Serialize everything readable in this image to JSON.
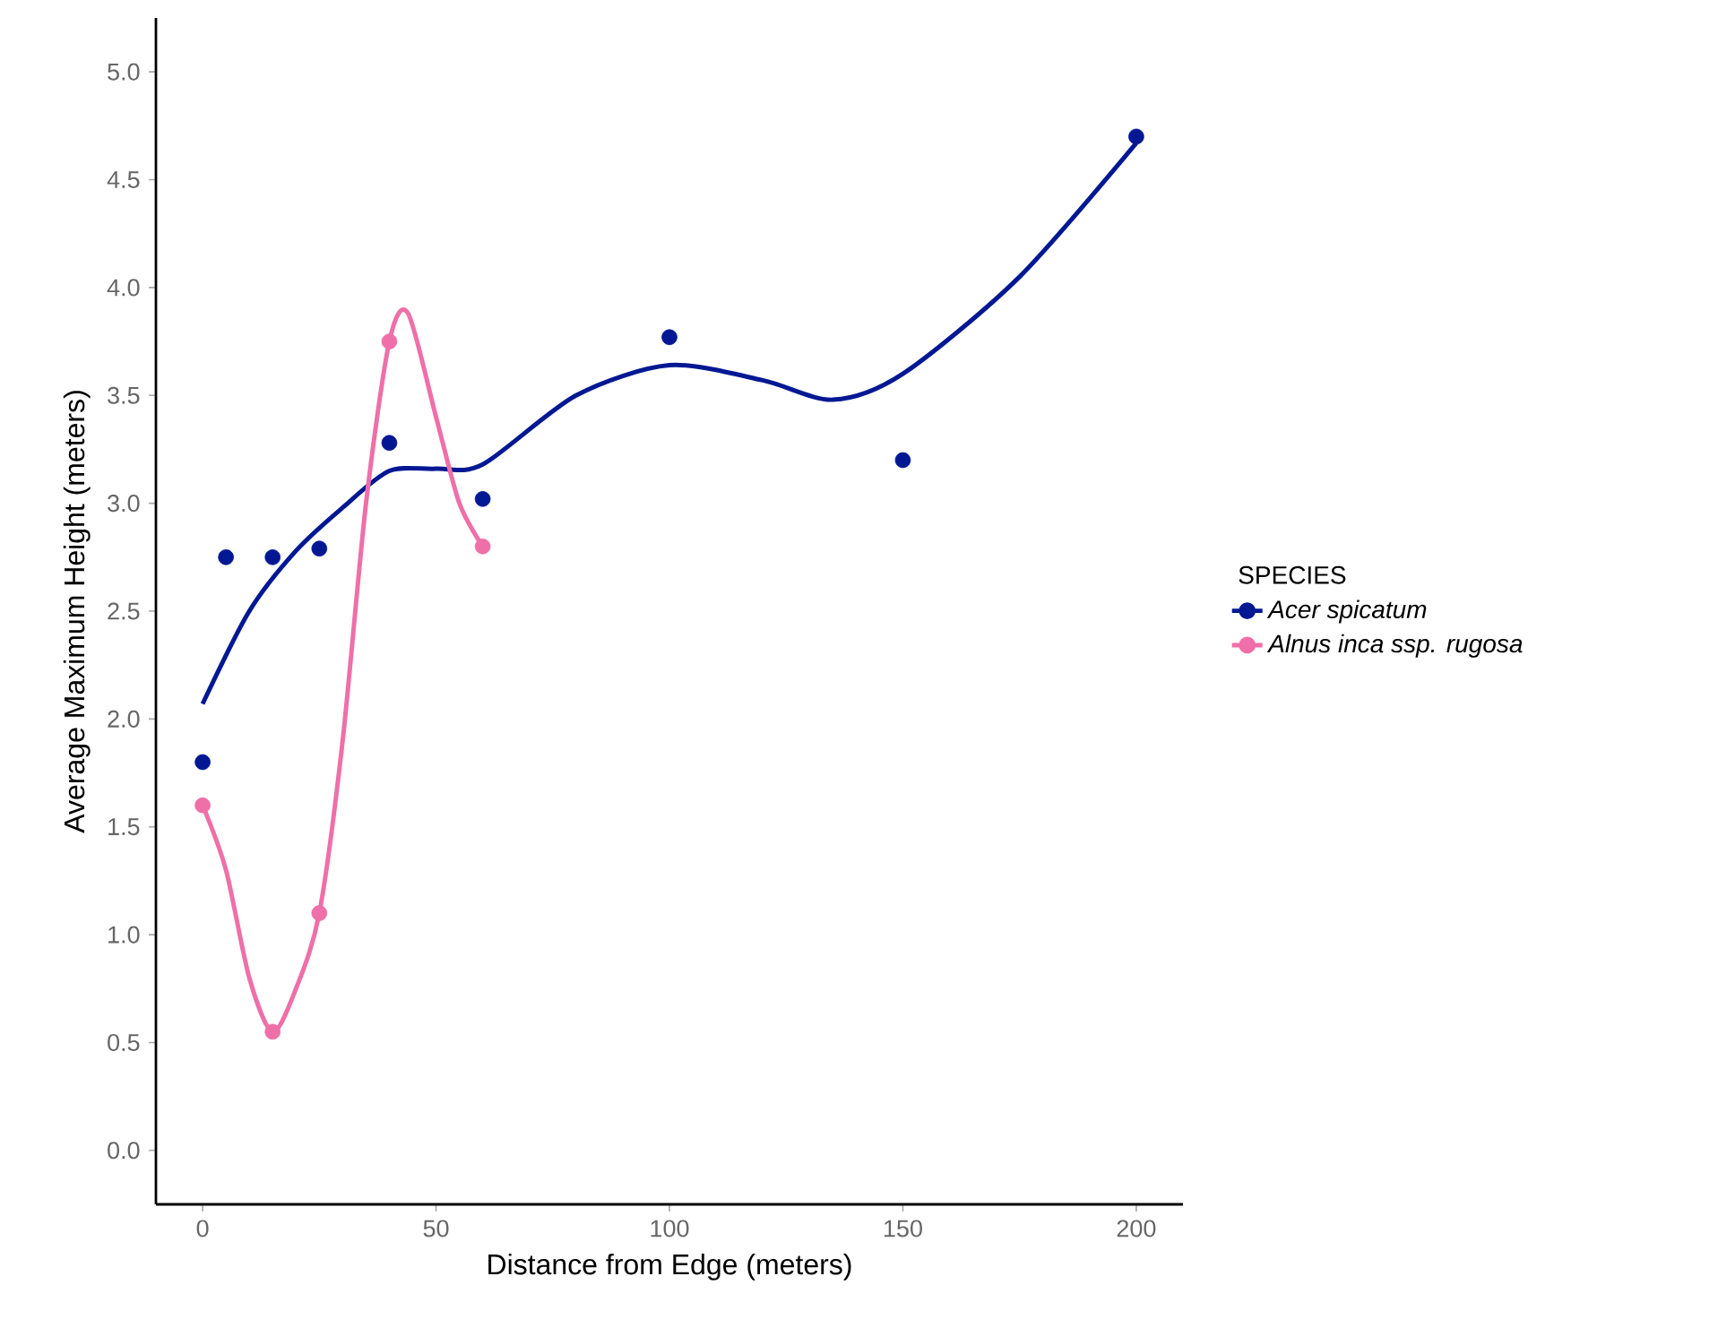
{
  "chart_data": {
    "type": "scatter",
    "xlabel": "Distance from Edge (meters)",
    "ylabel": "Average Maximum Height (meters)",
    "legend_title": "SPECIES",
    "legend": "right",
    "grid": false,
    "xlim": [
      -10,
      210
    ],
    "ylim": [
      -0.25,
      5.25
    ],
    "xticks": [
      0,
      50,
      100,
      150,
      200
    ],
    "yticks": [
      {
        "value": 0,
        "label": "0.0"
      },
      0.5,
      {
        "value": 1,
        "label": "1.0"
      },
      1.5,
      {
        "value": 2,
        "label": "2.0"
      },
      2.5,
      {
        "value": 3,
        "label": "3.0"
      },
      3.5,
      {
        "value": 4,
        "label": "4.0"
      },
      4.5,
      {
        "value": 5,
        "label": "5.0"
      }
    ],
    "series": [
      {
        "name": "Acer spicatum",
        "marker": "circle",
        "color": "#021893",
        "x": [
          0,
          5,
          15,
          25,
          40,
          60,
          100,
          150,
          200
        ],
        "values": [
          1.8,
          2.75,
          2.75,
          2.79,
          3.28,
          3.02,
          3.77,
          3.2,
          4.7
        ]
      },
      {
        "name": "Alnus inca ssp. rugosa",
        "marker": "circle",
        "color": "#ef6fa8",
        "x": [
          0,
          15,
          25,
          40,
          60
        ],
        "values": [
          1.6,
          0.55,
          1.1,
          3.75,
          2.8
        ]
      },
      {
        "type": "line",
        "line_style": "solid",
        "color": "#021893",
        "x": [
          0,
          10,
          20,
          30,
          40,
          50,
          60,
          80,
          100,
          120,
          135,
          150,
          175,
          200
        ],
        "values": [
          2.07,
          2.5,
          2.78,
          2.98,
          3.15,
          3.16,
          3.18,
          3.5,
          3.64,
          3.57,
          3.48,
          3.6,
          4.05,
          4.67
        ]
      },
      {
        "type": "line",
        "line_style": "solid",
        "color": "#ef6fa8",
        "x": [
          0,
          5,
          10,
          15,
          20,
          25,
          30,
          35,
          40,
          44,
          50,
          55,
          60
        ],
        "values": [
          1.6,
          1.3,
          0.8,
          0.55,
          0.75,
          1.1,
          1.9,
          3.0,
          3.75,
          3.88,
          3.4,
          3.0,
          2.8
        ]
      }
    ]
  }
}
